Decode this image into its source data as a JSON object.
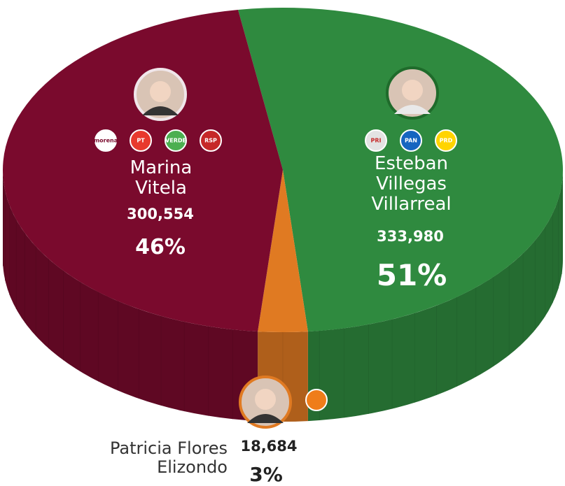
{
  "chart_data": {
    "type": "pie",
    "categories": [
      "Marina Vitela",
      "Esteban Villegas Villarreal",
      "Patricia Flores Elizondo"
    ],
    "values": [
      300554,
      333980,
      18684
    ],
    "value_labels": [
      "300,554",
      "333,980",
      "18,684"
    ],
    "share_labels": [
      "46%",
      "51%",
      "3%"
    ],
    "colors": [
      "#7a0a2d",
      "#2f8a3f",
      "#e07a22"
    ],
    "parties": [
      [
        "morena",
        "PT",
        "VERDE",
        "RSP"
      ],
      [
        "PRI",
        "PAN",
        "PRD"
      ],
      []
    ]
  }
}
